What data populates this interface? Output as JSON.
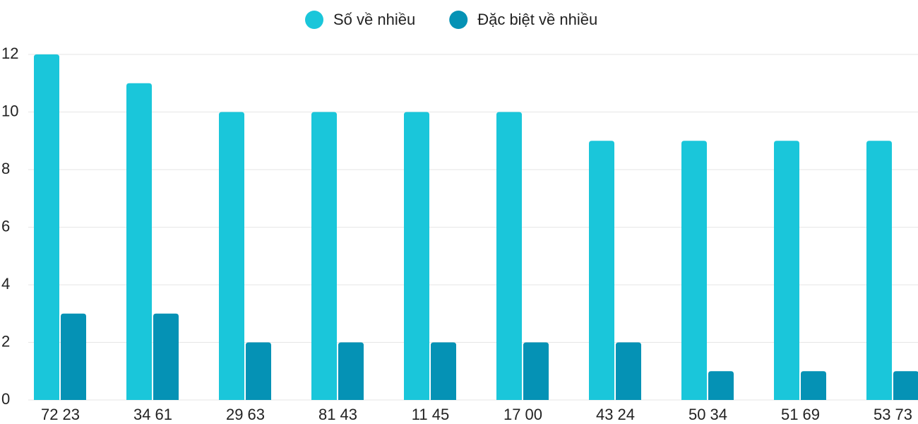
{
  "chart_data": {
    "type": "bar",
    "categories": [
      "72 23",
      "34 61",
      "29 63",
      "81 43",
      "11 45",
      "17 00",
      "43 24",
      "50 34",
      "51 69",
      "53 73"
    ],
    "series": [
      {
        "name": "Số về nhiều",
        "color": "#1ac6da",
        "values": [
          12,
          11,
          10,
          10,
          10,
          10,
          9,
          9,
          9,
          9
        ]
      },
      {
        "name": "Đặc biệt về nhiều",
        "color": "#0592b5",
        "values": [
          3,
          3,
          2,
          2,
          2,
          2,
          2,
          1,
          1,
          1
        ]
      }
    ],
    "ylim": [
      0,
      12
    ],
    "yticks": [
      0,
      2,
      4,
      6,
      8,
      10,
      12
    ],
    "grid": true,
    "legend": "top"
  }
}
